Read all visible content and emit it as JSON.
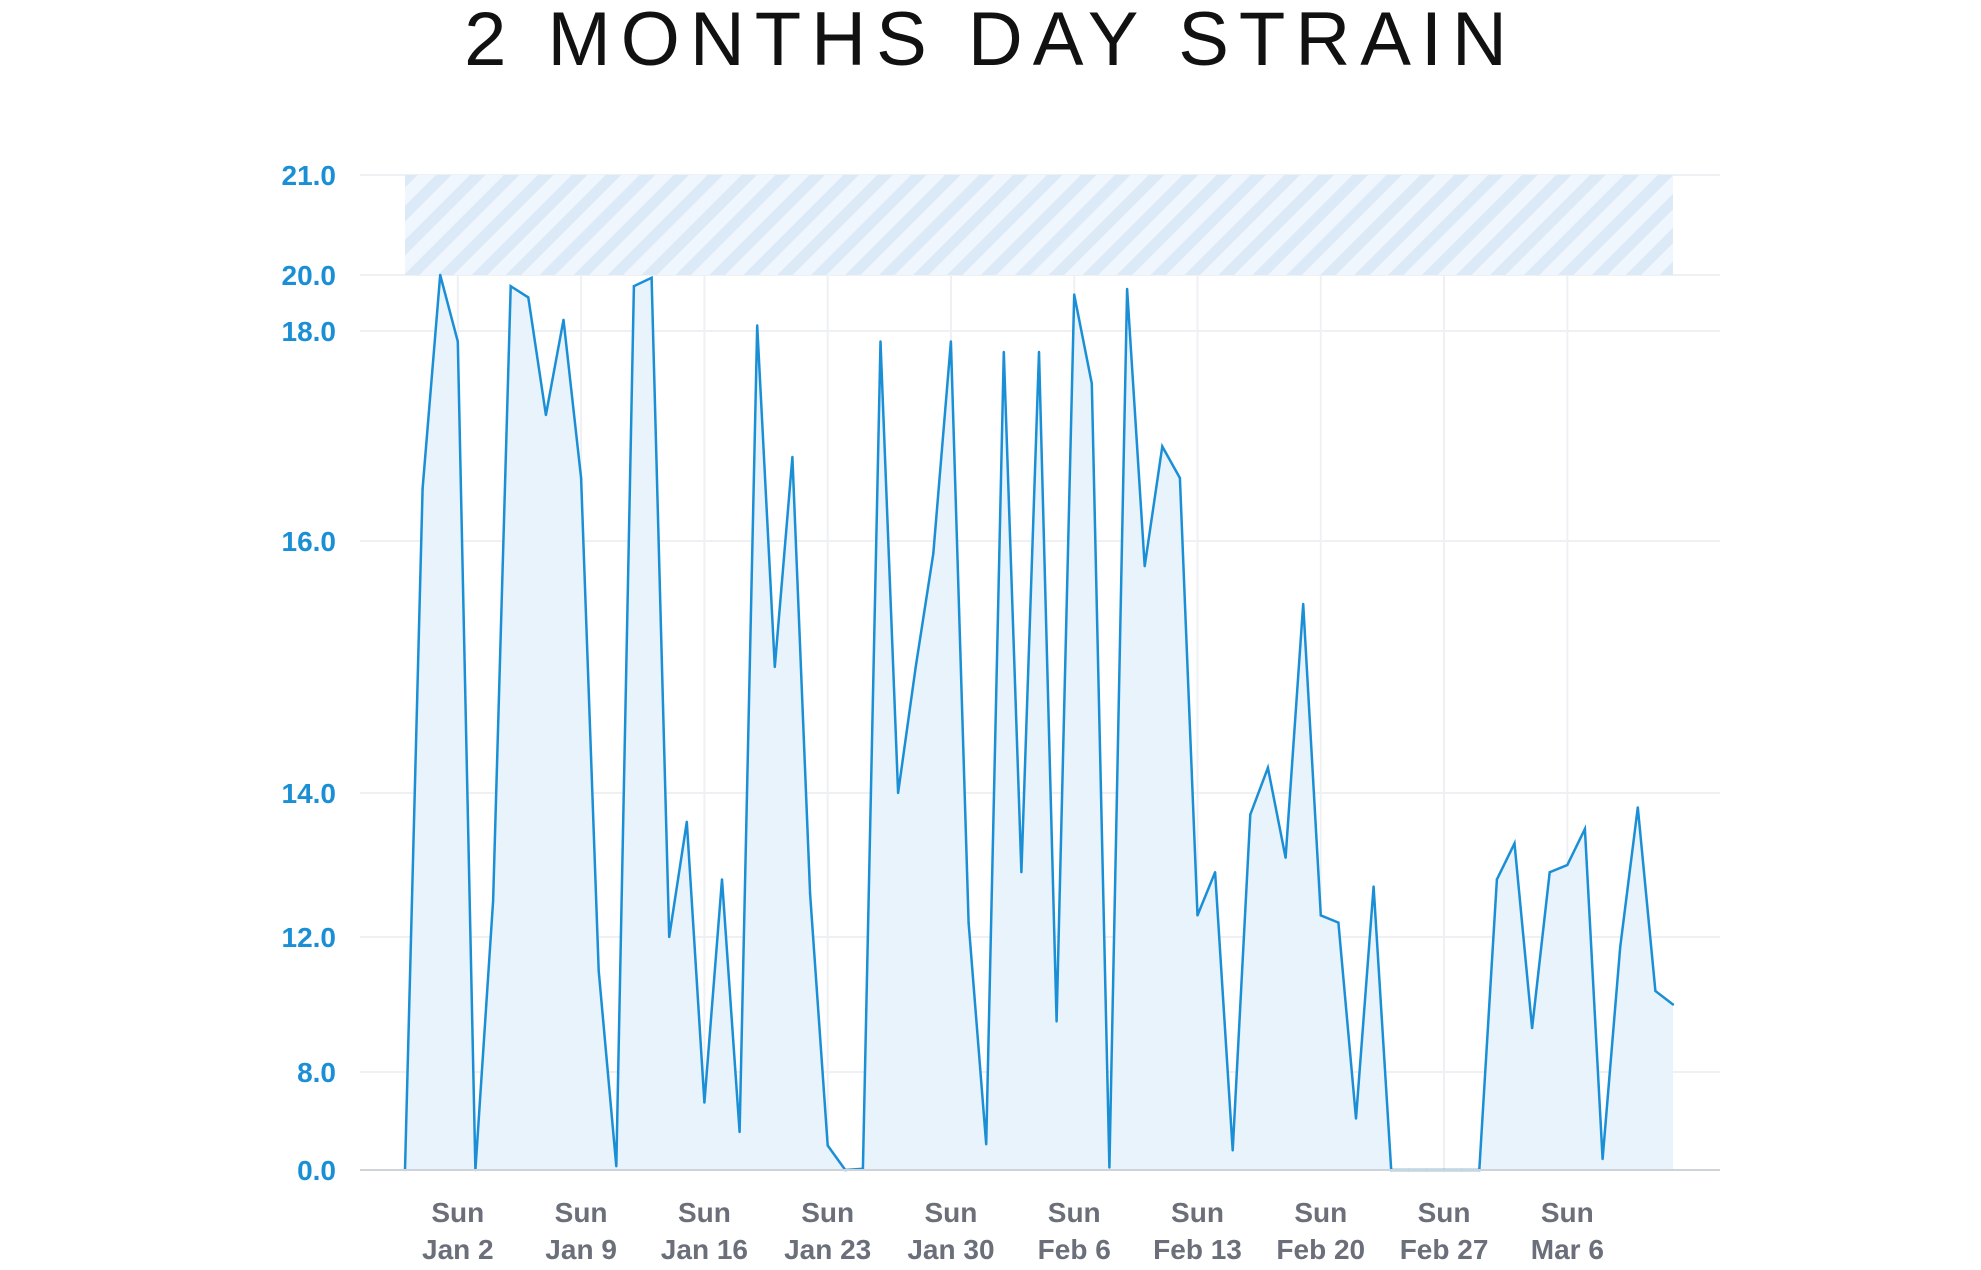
{
  "chart_data": {
    "type": "area",
    "title": "2 MONTHS DAY STRAIN",
    "xlabel": "",
    "ylabel": "",
    "ylim": [
      0,
      21
    ],
    "y_ticks": [
      "0.0",
      "8.0",
      "12.0",
      "14.0",
      "16.0",
      "18.0",
      "20.0",
      "21.0"
    ],
    "x_ticks": [
      {
        "day": 3,
        "line1": "Sun",
        "line2": "Jan 2"
      },
      {
        "day": 10,
        "line1": "Sun",
        "line2": "Jan 9"
      },
      {
        "day": 17,
        "line1": "Sun",
        "line2": "Jan 16"
      },
      {
        "day": 24,
        "line1": "Sun",
        "line2": "Jan 23"
      },
      {
        "day": 31,
        "line1": "Sun",
        "line2": "Jan 30"
      },
      {
        "day": 38,
        "line1": "Sun",
        "line2": "Feb 6"
      },
      {
        "day": 45,
        "line1": "Sun",
        "line2": "Feb 13"
      },
      {
        "day": 52,
        "line1": "Sun",
        "line2": "Feb 20"
      },
      {
        "day": 59,
        "line1": "Sun",
        "line2": "Feb 27"
      },
      {
        "day": 66,
        "line1": "Sun",
        "line2": "Mar 6"
      }
    ],
    "shaded_band": {
      "from": 20,
      "to": 21
    },
    "series": [
      {
        "name": "Day Strain",
        "color": "#1a8fd6",
        "fill": "#e8f3fb",
        "values": [
          0.0,
          16.5,
          20.0,
          17.9,
          0.0,
          12.5,
          19.6,
          19.2,
          17.2,
          18.4,
          16.6,
          11.0,
          0.3,
          19.6,
          19.9,
          12.0,
          13.6,
          5.5,
          12.8,
          3.1,
          18.2,
          15.0,
          16.8,
          12.6,
          2.0,
          0.0,
          0.1,
          17.9,
          14.0,
          15.0,
          15.9,
          17.9,
          12.2,
          2.1,
          17.8,
          12.9,
          17.8,
          9.5,
          19.3,
          17.5,
          0.2,
          19.5,
          15.8,
          16.9,
          16.6,
          12.3,
          12.9,
          1.6,
          13.7,
          14.2,
          13.1,
          15.5,
          12.3,
          12.2,
          4.2,
          12.7,
          0.0,
          0.0,
          0.0,
          0.0,
          0.0,
          0.0,
          12.8,
          13.3,
          9.3,
          12.9,
          13.0,
          13.5,
          0.9,
          11.7,
          13.8,
          10.4,
          10.0
        ]
      }
    ],
    "grid": true
  }
}
